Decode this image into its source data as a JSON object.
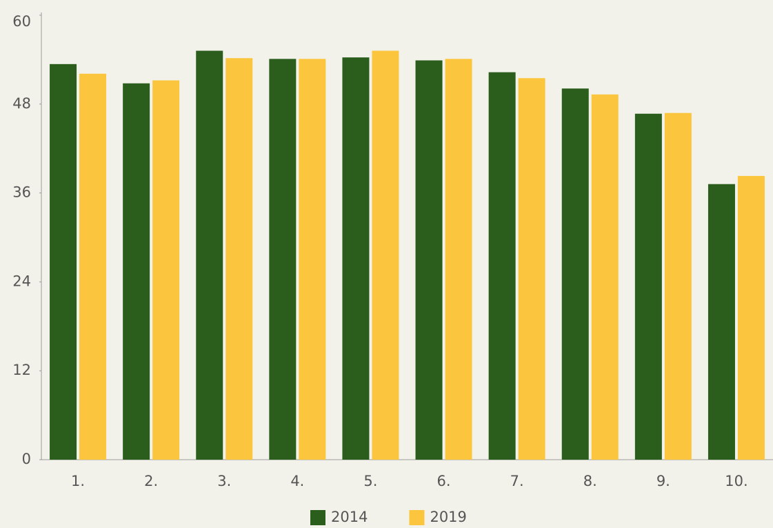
{
  "chart_data": {
    "type": "bar",
    "categories": [
      "1.",
      "2.",
      "3.",
      "4.",
      "5.",
      "6.",
      "7.",
      "8.",
      "9.",
      "10."
    ],
    "series": [
      {
        "name": "2014",
        "color": "#2b5e1d",
        "values": [
          53.4,
          50.8,
          55.2,
          54.1,
          54.3,
          53.9,
          52.3,
          50.1,
          46.7,
          37.2
        ]
      },
      {
        "name": "2019",
        "color": "#fbc53d",
        "values": [
          52.1,
          51.2,
          54.2,
          54.1,
          55.2,
          54.1,
          51.5,
          49.3,
          46.8,
          38.3
        ]
      }
    ],
    "ylim": [
      0,
      60
    ],
    "yticks": [
      0,
      12,
      24,
      36,
      48,
      60
    ],
    "legend": "bottom"
  }
}
